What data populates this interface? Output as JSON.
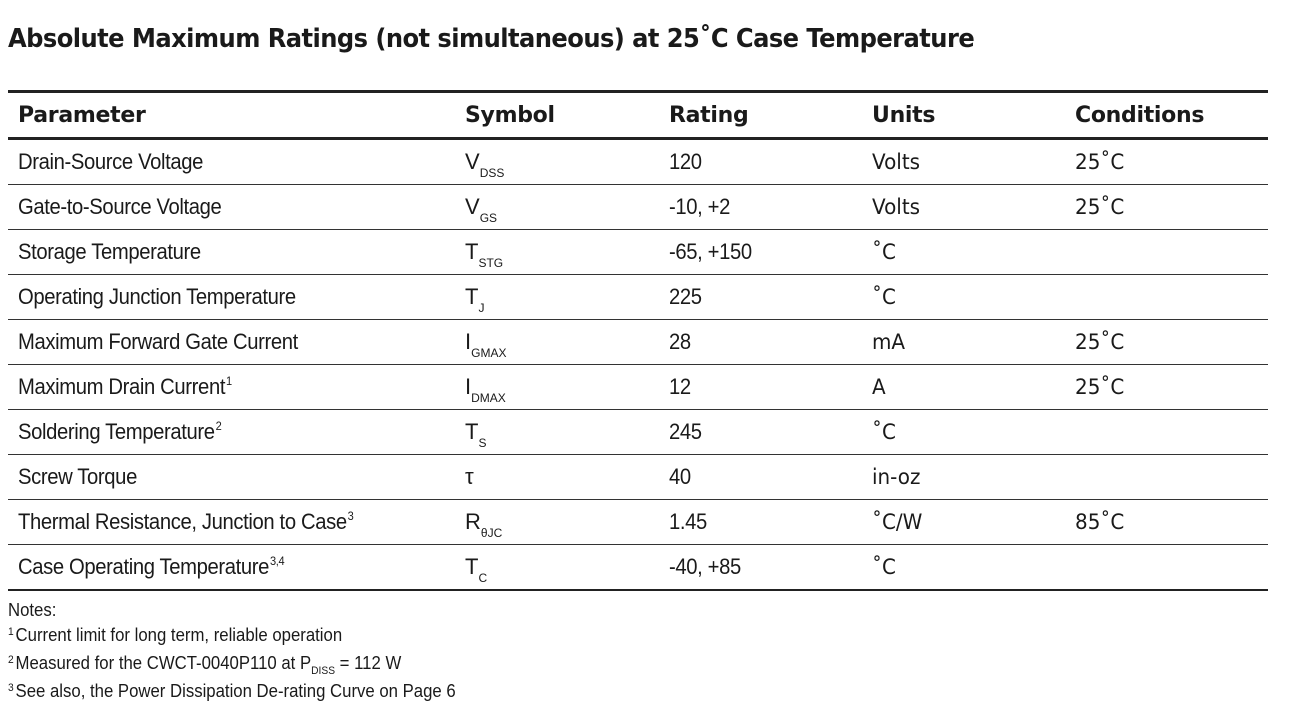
{
  "title": "Absolute Maximum Ratings (not simultaneous) at 25˚C Case Temperature",
  "table": {
    "headers": [
      "Parameter",
      "Symbol",
      "Rating",
      "Units",
      "Conditions"
    ],
    "rows": [
      {
        "parameter": "Drain-Source Voltage",
        "param_sup": "",
        "symbol_main": "V",
        "symbol_sub": "DSS",
        "rating": "120",
        "units": "Volts",
        "conditions": "25˚C"
      },
      {
        "parameter": "Gate-to-Source Voltage",
        "param_sup": "",
        "symbol_main": "V",
        "symbol_sub": "GS",
        "rating": "-10, +2",
        "units": "Volts",
        "conditions": "25˚C"
      },
      {
        "parameter": "Storage Temperature",
        "param_sup": "",
        "symbol_main": "T",
        "symbol_sub": "STG",
        "rating": "-65, +150",
        "units": "˚C",
        "conditions": ""
      },
      {
        "parameter": "Operating Junction Temperature",
        "param_sup": "",
        "symbol_main": "T",
        "symbol_sub": "J",
        "rating": "225",
        "units": "˚C",
        "conditions": ""
      },
      {
        "parameter": "Maximum Forward Gate Current",
        "param_sup": "",
        "symbol_main": "I",
        "symbol_sub": "GMAX",
        "rating": "28",
        "units": "mA",
        "conditions": "25˚C"
      },
      {
        "parameter": "Maximum Drain Current",
        "param_sup": "1",
        "symbol_main": "I",
        "symbol_sub": "DMAX",
        "rating": "12",
        "units": "A",
        "conditions": "25˚C"
      },
      {
        "parameter": "Soldering Temperature",
        "param_sup": "2",
        "symbol_main": "T",
        "symbol_sub": "S",
        "rating": "245",
        "units": "˚C",
        "conditions": ""
      },
      {
        "parameter": "Screw Torque",
        "param_sup": "",
        "symbol_main": "τ",
        "symbol_sub": "",
        "rating": "40",
        "units": "in-oz",
        "conditions": ""
      },
      {
        "parameter": "Thermal Resistance, Junction to Case",
        "param_sup": "3",
        "symbol_main": "R",
        "symbol_sub": "θJC",
        "rating": "1.45",
        "units": "˚C/W",
        "conditions": "85˚C"
      },
      {
        "parameter": "Case Operating Temperature",
        "param_sup": "3,4",
        "symbol_main": "T",
        "symbol_sub": "C",
        "rating": "-40, +85",
        "units": "˚C",
        "conditions": ""
      }
    ]
  },
  "notes": {
    "heading": "Notes:",
    "items": [
      {
        "num": "1",
        "text": "Current limit for long term, reliable operation",
        "sub": "",
        "after": ""
      },
      {
        "num": "2",
        "text": "Measured for the CWCT-0040P110 at P",
        "sub": "DISS",
        "after": " = 112 W"
      },
      {
        "num": "3",
        "text": "See also, the Power Dissipation De-rating Curve on Page 6",
        "sub": "",
        "after": ""
      }
    ]
  }
}
